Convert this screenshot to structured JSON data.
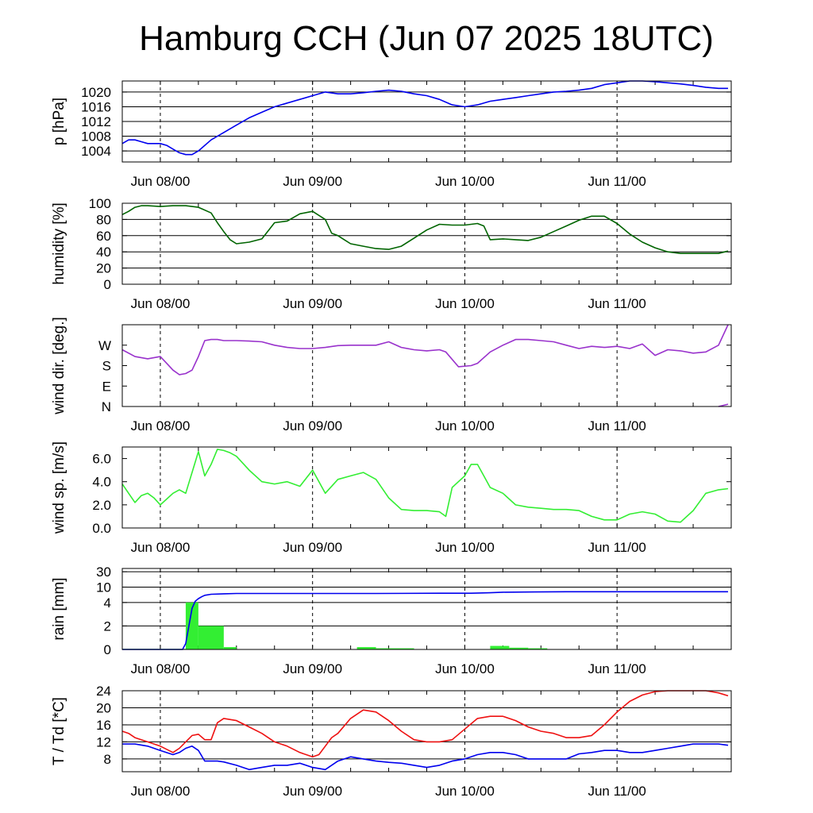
{
  "title": "Hamburg CCH (Jun 07 2025 18UTC)",
  "colors": {
    "pressure": "#0000ee",
    "humidity": "#006400",
    "wind_dir": "#9932cc",
    "wind_speed": "#33ee33",
    "rain_bar": "#33ee33",
    "rain_sum": "#0000ee",
    "temperature": "#ee1111",
    "dewpoint": "#0000ee"
  },
  "chart_data": [
    {
      "type": "line",
      "ylabel": "p [hPa]",
      "x_ticks": [
        "Jun 08/00",
        "Jun 09/00",
        "Jun 10/00",
        "Jun 11/00"
      ],
      "yticks": [
        1004,
        1008,
        1012,
        1016,
        1020
      ],
      "ylim": [
        1001,
        1023
      ],
      "grid": true,
      "series": [
        {
          "color": "pressure",
          "x": [
            0,
            1,
            2,
            3,
            4,
            5,
            6,
            7,
            8,
            9,
            10,
            11,
            12,
            14,
            16,
            18,
            20,
            22,
            24,
            26,
            28,
            30,
            32,
            34,
            36,
            38,
            40,
            42,
            44,
            46,
            48,
            50,
            52,
            54,
            56,
            58,
            60,
            62,
            64,
            66,
            68,
            70,
            72,
            74,
            76,
            78,
            80,
            82,
            84,
            86,
            88,
            90,
            92,
            94,
            95.5
          ],
          "values": [
            1006,
            1007,
            1007,
            1006.5,
            1006,
            1006,
            1006,
            1005.5,
            1004.5,
            1003.5,
            1003,
            1003,
            1004,
            1007,
            1009,
            1011,
            1013,
            1014.5,
            1016,
            1017,
            1018,
            1019,
            1020,
            1019.5,
            1019.5,
            1019.8,
            1020.2,
            1020.5,
            1020.2,
            1019.5,
            1019,
            1018,
            1016.5,
            1016,
            1016.5,
            1017.5,
            1018,
            1018.5,
            1019,
            1019.5,
            1020,
            1020.2,
            1020.5,
            1021,
            1022,
            1022.5,
            1023,
            1023,
            1022.8,
            1022.5,
            1022.2,
            1021.8,
            1021.3,
            1021,
            1021
          ]
        }
      ]
    },
    {
      "type": "line",
      "ylabel": "humidity [%]",
      "x_ticks": [
        "Jun 08/00",
        "Jun 09/00",
        "Jun 10/00",
        "Jun 11/00"
      ],
      "yticks": [
        0,
        20,
        40,
        60,
        80,
        100
      ],
      "ylim": [
        0,
        100
      ],
      "grid": true,
      "series": [
        {
          "color": "humidity",
          "x": [
            0,
            1,
            2,
            3,
            4,
            6,
            8,
            10,
            12,
            14,
            15,
            16,
            17,
            18,
            20,
            22,
            23,
            24,
            26,
            28,
            30,
            32,
            33,
            34,
            35,
            36,
            38,
            40,
            42,
            44,
            46,
            48,
            50,
            52,
            54,
            56,
            57,
            58,
            60,
            62,
            64,
            66,
            68,
            70,
            72,
            74,
            75,
            76,
            78,
            80,
            82,
            84,
            86,
            88,
            90,
            92,
            94,
            95.5
          ],
          "values": [
            86,
            90,
            95,
            97,
            97,
            96,
            97,
            97,
            95,
            88,
            76,
            65,
            55,
            50,
            52,
            56,
            66,
            76,
            78,
            87,
            90,
            80,
            63,
            60,
            55,
            50,
            47,
            44,
            43,
            47,
            57,
            67,
            74,
            73,
            73,
            75,
            72,
            55,
            56,
            55,
            54,
            58,
            65,
            72,
            79,
            84,
            84,
            84,
            75,
            62,
            52,
            45,
            40,
            38,
            38,
            38,
            38,
            41
          ]
        }
      ]
    },
    {
      "type": "line",
      "ylabel": "wind dir. [deg.]",
      "x_ticks": [
        "Jun 08/00",
        "Jun 09/00",
        "Jun 10/00",
        "Jun 11/00"
      ],
      "ytick_labels": [
        "N",
        "E",
        "S",
        "W"
      ],
      "yticks": [
        0,
        90,
        180,
        270
      ],
      "ylim": [
        0,
        360
      ],
      "grid": false,
      "series": [
        {
          "color": "wind_dir",
          "x": [
            0,
            2,
            4,
            6,
            7,
            8,
            9,
            10,
            11,
            12,
            13,
            14,
            15,
            16,
            18,
            20,
            22,
            24,
            26,
            28,
            30,
            32,
            34,
            36,
            38,
            40,
            42,
            44,
            46,
            48,
            50,
            51,
            53,
            55,
            56,
            58,
            60,
            62,
            64,
            66,
            68,
            70,
            72,
            74,
            76,
            78,
            80,
            82,
            84,
            86,
            88,
            90,
            92,
            94,
            95.5
          ],
          "values": [
            250,
            220,
            210,
            220,
            190,
            160,
            140,
            145,
            160,
            220,
            290,
            295,
            295,
            290,
            290,
            288,
            285,
            270,
            260,
            255,
            255,
            260,
            268,
            270,
            270,
            270,
            285,
            260,
            250,
            245,
            250,
            240,
            175,
            180,
            190,
            240,
            270,
            295,
            295,
            290,
            285,
            270,
            255,
            265,
            260,
            265,
            255,
            275,
            225,
            250,
            245,
            235,
            240,
            270,
            360
          ]
        },
        {
          "color": "wind_dir",
          "x": [
            94,
            95.5
          ],
          "values": [
            0,
            10
          ]
        }
      ]
    },
    {
      "type": "line",
      "ylabel": "wind sp. [m/s]",
      "x_ticks": [
        "Jun 08/00",
        "Jun 09/00",
        "Jun 10/00",
        "Jun 11/00"
      ],
      "ytick_labels": [
        "0.0",
        "2.0",
        "4.0",
        "6.0"
      ],
      "yticks": [
        0,
        2,
        4,
        6
      ],
      "ylim": [
        0,
        7
      ],
      "grid": false,
      "series": [
        {
          "color": "wind_speed",
          "x": [
            0,
            1,
            2,
            3,
            4,
            5,
            6,
            7,
            8,
            9,
            10,
            11,
            12,
            13,
            14,
            15,
            16,
            17,
            18,
            20,
            22,
            24,
            26,
            28,
            30,
            32,
            34,
            36,
            38,
            40,
            42,
            44,
            46,
            48,
            50,
            51,
            52,
            53,
            54,
            55,
            56,
            57,
            58,
            60,
            62,
            64,
            66,
            68,
            70,
            72,
            74,
            76,
            78,
            80,
            82,
            84,
            86,
            88,
            90,
            92,
            94,
            95.5
          ],
          "values": [
            3.8,
            3.0,
            2.2,
            2.8,
            3.0,
            2.6,
            2.0,
            2.5,
            3.0,
            3.3,
            3.0,
            4.8,
            6.6,
            4.5,
            5.5,
            6.8,
            6.7,
            6.5,
            6.2,
            5.0,
            4.0,
            3.8,
            4.0,
            3.6,
            5.0,
            3.0,
            4.2,
            4.5,
            4.8,
            4.2,
            2.6,
            1.6,
            1.5,
            1.5,
            1.4,
            1.0,
            3.5,
            4.0,
            4.5,
            5.5,
            5.5,
            4.5,
            3.5,
            3.0,
            2.0,
            1.8,
            1.7,
            1.6,
            1.6,
            1.5,
            1.0,
            0.7,
            0.7,
            1.2,
            1.4,
            1.2,
            0.6,
            0.5,
            1.5,
            3.0,
            3.3,
            3.4
          ]
        }
      ]
    },
    {
      "type": "bar",
      "ylabel": "rain [mm]",
      "x_ticks": [
        "Jun 08/00",
        "Jun 09/00",
        "Jun 10/00",
        "Jun 11/00"
      ],
      "ytick_labels": [
        "0",
        "2",
        "4",
        "10",
        "30"
      ],
      "grid": true,
      "bars": [
        {
          "x0": 0,
          "x1": 10,
          "value": 0.05
        },
        {
          "x0": 10,
          "x1": 12,
          "value": 4
        },
        {
          "x0": 12,
          "x1": 16,
          "value": 2
        },
        {
          "x0": 16,
          "x1": 18,
          "value": 0.2
        },
        {
          "x0": 37,
          "x1": 40,
          "value": 0.2
        },
        {
          "x0": 40,
          "x1": 46,
          "value": 0.1
        },
        {
          "x0": 58,
          "x1": 61,
          "value": 0.3
        },
        {
          "x0": 61,
          "x1": 64,
          "value": 0.15
        },
        {
          "x0": 64,
          "x1": 67,
          "value": 0.1
        }
      ],
      "series": [
        {
          "color": "rain_sum",
          "name": "",
          "x": [
            0,
            9.5,
            10,
            10.5,
            11,
            11.5,
            12,
            12.5,
            13,
            14,
            16,
            18,
            20,
            30,
            40,
            50,
            55,
            58,
            60,
            65,
            70,
            80,
            90,
            95.5
          ],
          "values": [
            0,
            0,
            0.5,
            2,
            3.5,
            4.5,
            5.5,
            6.2,
            6.8,
            7.2,
            7.4,
            7.5,
            7.5,
            7.5,
            7.5,
            7.6,
            7.6,
            7.8,
            8.0,
            8.1,
            8.2,
            8.2,
            8.2,
            8.2
          ]
        }
      ]
    },
    {
      "type": "line",
      "ylabel": "T / Td [*C]",
      "x_ticks": [
        "Jun 08/00",
        "Jun 09/00",
        "Jun 10/00",
        "Jun 11/00"
      ],
      "yticks": [
        8,
        12,
        16,
        20,
        24
      ],
      "ylim": [
        5,
        24
      ],
      "grid": true,
      "series": [
        {
          "color": "temperature",
          "x": [
            0,
            1,
            2,
            4,
            6,
            8,
            9,
            10,
            11,
            12,
            13,
            14,
            15,
            16,
            18,
            20,
            22,
            24,
            26,
            28,
            30,
            31,
            32,
            33,
            34,
            36,
            38,
            40,
            42,
            44,
            46,
            48,
            50,
            52,
            54,
            56,
            58,
            60,
            62,
            64,
            66,
            68,
            70,
            72,
            74,
            76,
            78,
            80,
            82,
            84,
            86,
            88,
            90,
            92,
            94,
            95.5
          ],
          "values": [
            14.5,
            14,
            13,
            12,
            11,
            9.5,
            10.5,
            12,
            13.5,
            13.8,
            12.5,
            12.5,
            16.5,
            17.5,
            17,
            15.5,
            14,
            12,
            11,
            9.5,
            8.5,
            9,
            11,
            13,
            14,
            17.5,
            19.5,
            19,
            17,
            14.5,
            12.5,
            12,
            12,
            12.5,
            15,
            17.5,
            18,
            18,
            17,
            15.5,
            14.5,
            14,
            13,
            13,
            13.5,
            16,
            19,
            21.5,
            23,
            23.8,
            24,
            24,
            24,
            24,
            23.5,
            22.8
          ]
        },
        {
          "color": "dewpoint",
          "x": [
            0,
            2,
            4,
            6,
            8,
            9,
            10,
            11,
            12,
            13,
            14,
            15,
            16,
            18,
            20,
            22,
            24,
            26,
            28,
            30,
            32,
            34,
            36,
            38,
            40,
            42,
            44,
            46,
            48,
            50,
            52,
            54,
            56,
            58,
            60,
            62,
            64,
            66,
            68,
            70,
            72,
            74,
            76,
            78,
            80,
            82,
            84,
            86,
            88,
            90,
            92,
            94,
            95.5
          ],
          "values": [
            11.5,
            11.5,
            11,
            10,
            9,
            9.5,
            10.5,
            11,
            10,
            7.5,
            7.5,
            7.5,
            7.3,
            6.5,
            5.5,
            6,
            6.5,
            6.5,
            7,
            6,
            5.5,
            7.5,
            8.5,
            8,
            7.5,
            7.2,
            7,
            6.5,
            6,
            6.5,
            7.5,
            8,
            9,
            9.5,
            9.5,
            9,
            8,
            8,
            8,
            8,
            9.2,
            9.5,
            10,
            10,
            9.5,
            9.5,
            10,
            10.5,
            11,
            11.5,
            11.5,
            11.5,
            11.2
          ]
        }
      ]
    }
  ]
}
